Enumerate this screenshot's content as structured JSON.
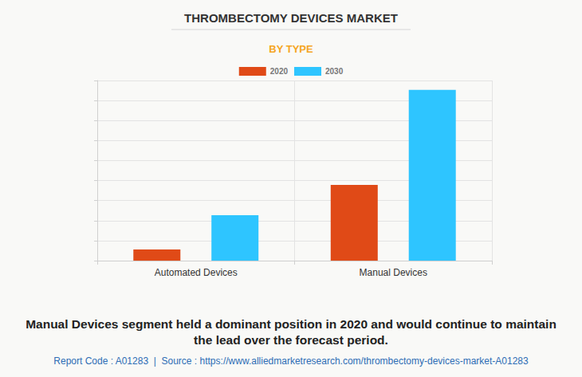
{
  "chart_data": {
    "type": "bar",
    "title": "THROMBECTOMY DEVICES MARKET",
    "subtitle": "BY TYPE",
    "categories": [
      "Automated Devices",
      "Manual Devices"
    ],
    "series": [
      {
        "name": "2020",
        "color": "#e04a17",
        "values": [
          0.56,
          3.78
        ]
      },
      {
        "name": "2030",
        "color": "#2ec5ff",
        "values": [
          2.27,
          8.53
        ]
      }
    ],
    "ylim": [
      0,
      9
    ],
    "yticks": [
      0,
      1,
      2,
      3,
      4,
      5,
      6,
      7,
      8,
      9
    ],
    "grid": true,
    "legend": "top",
    "tick_labels": "x",
    "caption": "Manual Devices segment held a dominant position in 2020 and would continue to maintain the lead over the forecast period.",
    "source": "Report Code : A01283  |  Source : https://www.alliedmarketresearch.com/thrombectomy-devices-market-A01283"
  }
}
